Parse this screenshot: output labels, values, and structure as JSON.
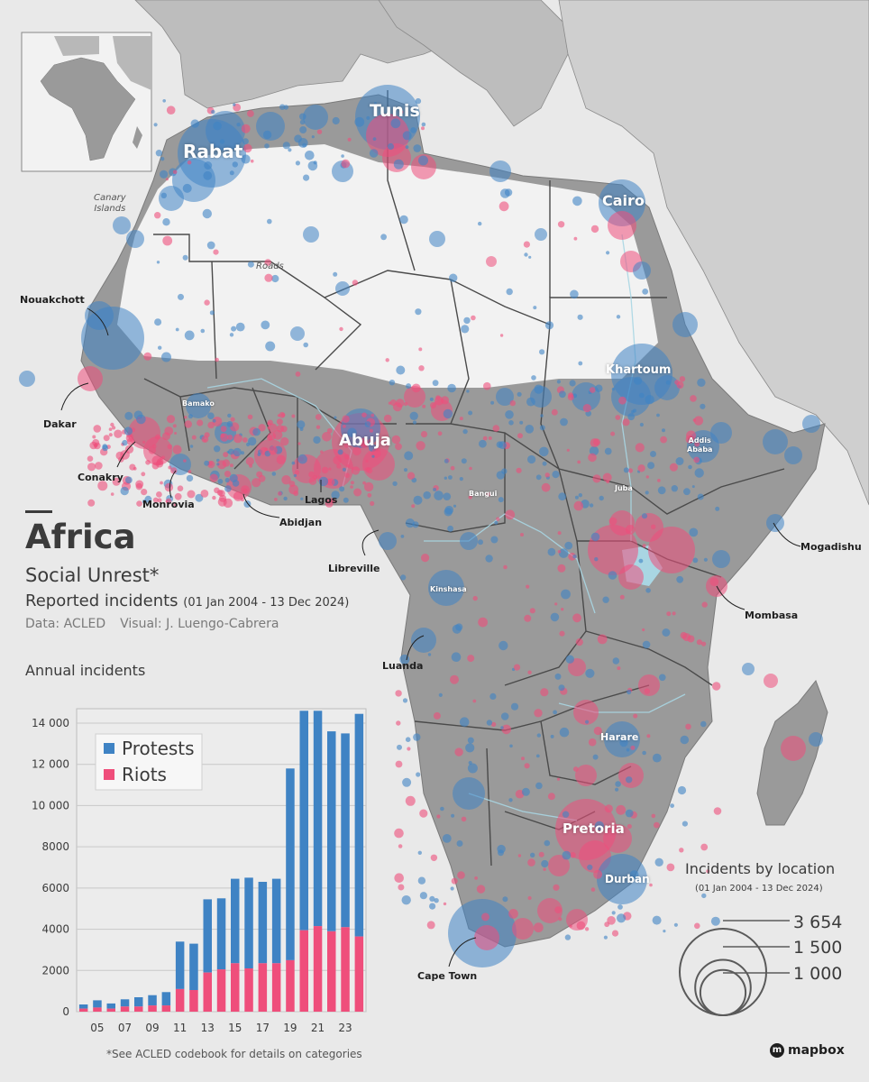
{
  "title": "Africa",
  "subtitle": "Social Unrest*",
  "incidents_heading": "Reported incidents",
  "incidents_period": "(01 Jan 2004 - 13 Dec 2024)",
  "data_credit": "Data: ACLED",
  "visual_credit": "Visual: J. Luengo-Cabrera",
  "footnote": "*See ACLED codebook for details on categories",
  "mapbox_label": "mapbox",
  "colors": {
    "protests": "#3f83c4",
    "riots": "#ef4e7b",
    "land": "#9a9a9a",
    "desert": "#f2f2f2",
    "sea": "#e9e9e9",
    "border": "#4a4a4a",
    "rivers": "#a9d6e3"
  },
  "map_notes": {
    "canary": "Canary\nIslands",
    "roads": "Roads"
  },
  "cities_major": [
    "Rabat",
    "Tunis",
    "Cairo",
    "Khartoum",
    "Abuja",
    "Pretoria",
    "Harare",
    "Durban"
  ],
  "cities_small": [
    "Bamako",
    "Bangui",
    "Juba",
    "Kinshasa",
    "Addis\nAbaba"
  ],
  "cities_callout": [
    "Nouakchott",
    "Dakar",
    "Conakry",
    "Monrovia",
    "Abidjan",
    "Lagos",
    "Libreville",
    "Luanda",
    "Cape Town",
    "Mogadishu",
    "Mombasa"
  ],
  "size_legend": {
    "title": "Incidents by location",
    "period": "(01 Jan 2004 - 13 Dec 2024)",
    "values": [
      "3 654",
      "1 500",
      "1 000"
    ],
    "numeric": [
      3654,
      1500,
      1000
    ]
  },
  "chart_data": {
    "type": "bar",
    "stacked": true,
    "title": "Annual incidents",
    "xlabel": "",
    "ylabel": "",
    "years": [
      2004,
      2005,
      2006,
      2007,
      2008,
      2009,
      2010,
      2011,
      2012,
      2013,
      2014,
      2015,
      2016,
      2017,
      2018,
      2019,
      2020,
      2021,
      2022,
      2023,
      2024
    ],
    "x_tick_labels": [
      "05",
      "07",
      "09",
      "11",
      "13",
      "15",
      "17",
      "19",
      "21",
      "23"
    ],
    "x_tick_years": [
      2005,
      2007,
      2009,
      2011,
      2013,
      2015,
      2017,
      2019,
      2021,
      2023
    ],
    "y_ticks": [
      0,
      2000,
      4000,
      6000,
      8000,
      10000,
      12000,
      14000
    ],
    "y_tick_labels": [
      "0",
      "2000",
      "4000",
      "6000",
      "8000",
      "10 000",
      "12 000",
      "14 000"
    ],
    "ylim": [
      0,
      14700
    ],
    "series": [
      {
        "name": "Riots",
        "values": [
          150,
          200,
          150,
          250,
          250,
          300,
          300,
          1100,
          1050,
          1900,
          2050,
          2350,
          2100,
          2350,
          2350,
          2500,
          3950,
          4150,
          3900,
          4100,
          3650
        ]
      },
      {
        "name": "Protests",
        "values": [
          200,
          350,
          250,
          350,
          450,
          500,
          650,
          2300,
          2250,
          3550,
          3450,
          4100,
          4400,
          3950,
          4100,
          9300,
          10650,
          10450,
          9700,
          9400,
          10800
        ]
      }
    ],
    "legend": [
      "Protests",
      "Riots"
    ],
    "legend_position": "top-left"
  }
}
